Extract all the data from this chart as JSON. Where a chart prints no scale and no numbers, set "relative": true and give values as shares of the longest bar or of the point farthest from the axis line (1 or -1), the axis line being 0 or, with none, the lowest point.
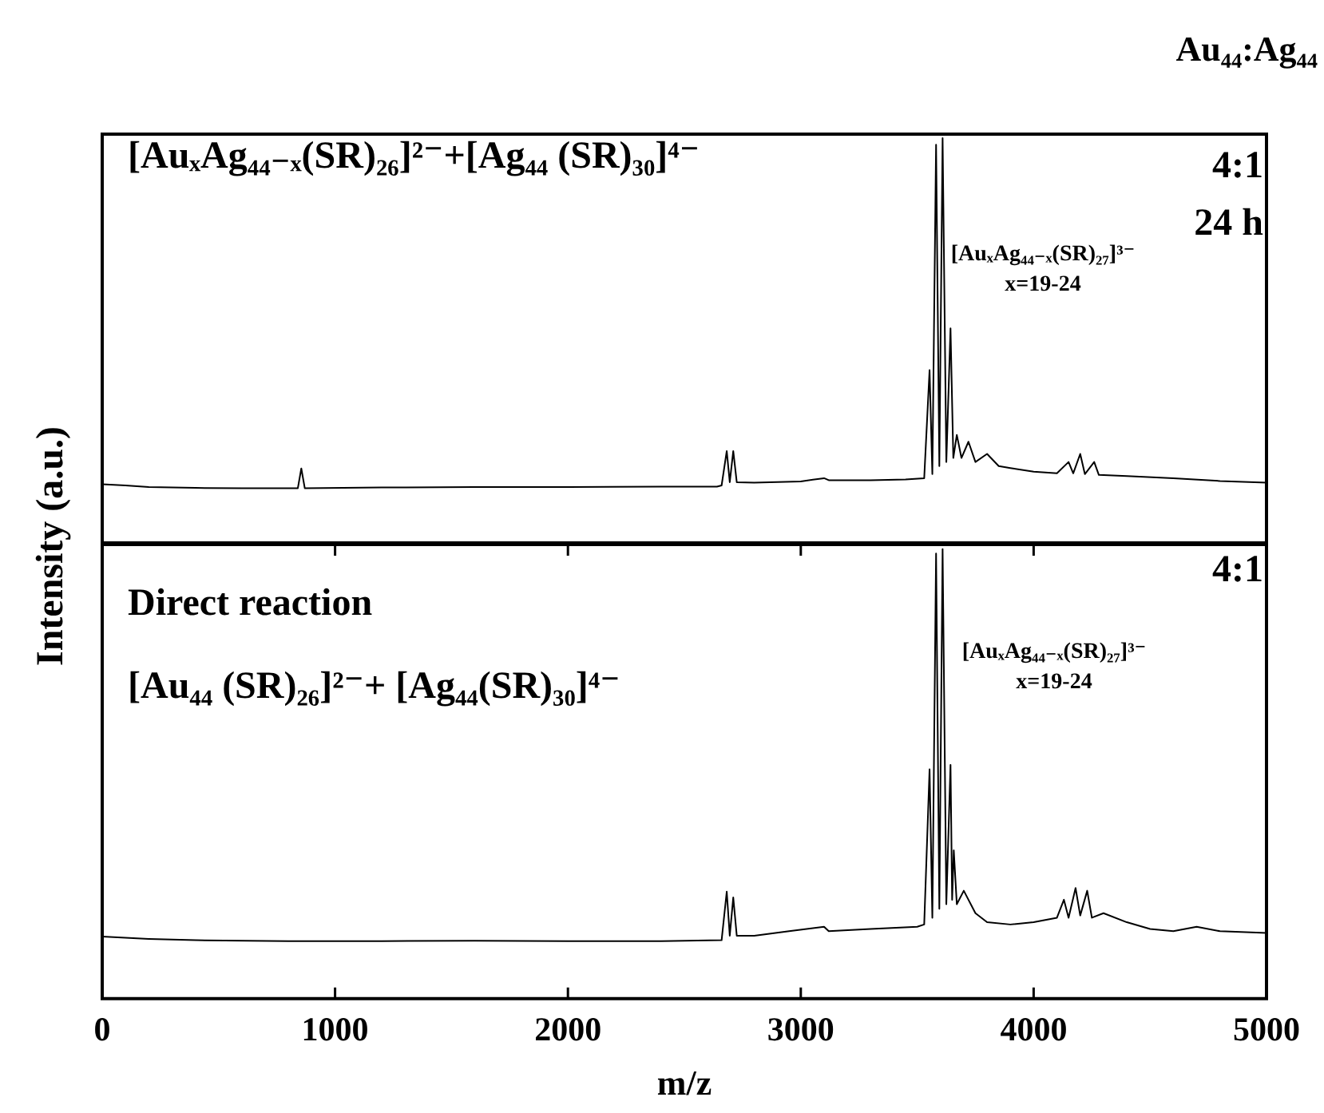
{
  "chart_data": [
    {
      "type": "line",
      "title": "Au₄₄:Ag₄₄",
      "ylabel": "Intensity (a.u.)",
      "relative": true,
      "grid": false,
      "legend": false,
      "marker": "none",
      "tick_labels": false,
      "xlim": [
        0,
        5000
      ],
      "xticks": [
        0,
        1000,
        2000,
        3000,
        4000,
        5000
      ],
      "annotations": [
        "[AuₓAg₄₄₋ₓ(SR)₂₆]²⁻+[Ag₄₄ (SR)₃₀]⁴⁻",
        "4:1",
        "24 h",
        "[AuₓAg₄₄₋ₓ(SR)₂₇]³⁻",
        "x=19-24"
      ],
      "series": [
        {
          "color": "#000000",
          "x": [
            0,
            100,
            200,
            400,
            600,
            840,
            855,
            870,
            1200,
            1600,
            2000,
            2400,
            2640,
            2660,
            2682,
            2695,
            2710,
            2725,
            2800,
            3000,
            3100,
            3120,
            3300,
            3450,
            3530,
            3553,
            3565,
            3581,
            3595,
            3609,
            3625,
            3643,
            3655,
            3670,
            3690,
            3720,
            3750,
            3800,
            3850,
            3900,
            4000,
            4100,
            4150,
            4170,
            4200,
            4220,
            4260,
            4280,
            4400,
            4600,
            4800,
            5000
          ],
          "values": [
            0.145,
            0.142,
            0.138,
            0.136,
            0.135,
            0.135,
            0.184,
            0.135,
            0.137,
            0.138,
            0.138,
            0.139,
            0.139,
            0.142,
            0.227,
            0.15,
            0.227,
            0.15,
            0.149,
            0.152,
            0.16,
            0.155,
            0.155,
            0.157,
            0.16,
            0.427,
            0.17,
            0.984,
            0.19,
            1.0,
            0.2,
            0.53,
            0.21,
            0.267,
            0.21,
            0.25,
            0.2,
            0.22,
            0.19,
            0.185,
            0.176,
            0.172,
            0.2,
            0.172,
            0.22,
            0.17,
            0.2,
            0.168,
            0.165,
            0.16,
            0.153,
            0.149
          ]
        }
      ]
    },
    {
      "type": "line",
      "xlabel": "m/z",
      "relative": true,
      "grid": false,
      "legend": false,
      "marker": "none",
      "tick_labels": "x",
      "xlim": [
        0,
        5000
      ],
      "xticks": [
        0,
        1000,
        2000,
        3000,
        4000,
        5000
      ],
      "annotations": [
        "4:1",
        "Direct  reaction",
        "[Au₄₄ (SR)₂₆]²⁻+ [Ag₄₄(SR)₃₀]⁴⁻",
        "[AuₓAg₄₄₋ₓ(SR)₂₇]³⁻",
        "x=19-24"
      ],
      "series": [
        {
          "color": "#000000",
          "x": [
            0,
            200,
            400,
            800,
            1200,
            1600,
            2000,
            2400,
            2660,
            2682,
            2695,
            2710,
            2725,
            2800,
            2950,
            3100,
            3120,
            3300,
            3500,
            3530,
            3553,
            3565,
            3581,
            3595,
            3609,
            3625,
            3643,
            3650,
            3657,
            3670,
            3700,
            3750,
            3800,
            3900,
            4000,
            4100,
            4130,
            4150,
            4180,
            4200,
            4230,
            4250,
            4300,
            4400,
            4500,
            4600,
            4700,
            4800,
            5000
          ],
          "values": [
            0.138,
            0.133,
            0.13,
            0.128,
            0.128,
            0.129,
            0.128,
            0.128,
            0.13,
            0.238,
            0.14,
            0.225,
            0.14,
            0.14,
            0.15,
            0.16,
            0.15,
            0.155,
            0.16,
            0.165,
            0.51,
            0.18,
            0.99,
            0.2,
            1.0,
            0.21,
            0.52,
            0.22,
            0.33,
            0.21,
            0.24,
            0.19,
            0.17,
            0.165,
            0.17,
            0.18,
            0.22,
            0.18,
            0.246,
            0.185,
            0.24,
            0.18,
            0.19,
            0.17,
            0.155,
            0.15,
            0.16,
            0.15,
            0.146
          ]
        }
      ]
    }
  ]
}
